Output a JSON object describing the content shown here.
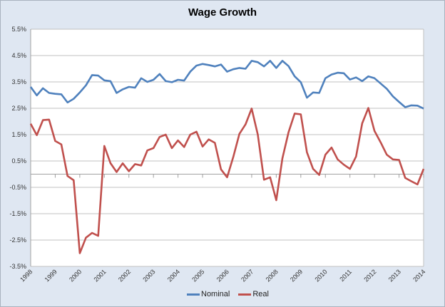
{
  "chart_data": {
    "type": "line",
    "title": "Wage Growth",
    "xlabel": "",
    "ylabel": "",
    "ylim": [
      -3.5,
      5.5
    ],
    "y_ticks": [
      "5.5%",
      "4.5%",
      "3.5%",
      "2.5%",
      "1.5%",
      "0.5%",
      "-0.5%",
      "-1.5%",
      "-2.5%",
      "-3.5%"
    ],
    "x_ticks": [
      "1998",
      "1999",
      "2000",
      "2001",
      "2002",
      "2003",
      "2004",
      "2005",
      "2006",
      "2007",
      "2008",
      "2009",
      "2010",
      "2011",
      "2012",
      "2013",
      "2014"
    ],
    "xlim": [
      1998,
      2014
    ],
    "x_step": "quarterly",
    "grid": "horizontal",
    "legend": "bottom",
    "series": [
      {
        "name": "Nominal",
        "color": "#4f81bd",
        "values": [
          3.31,
          2.99,
          3.26,
          3.08,
          3.05,
          3.03,
          2.72,
          2.86,
          3.1,
          3.37,
          3.76,
          3.74,
          3.56,
          3.53,
          3.08,
          3.22,
          3.31,
          3.28,
          3.64,
          3.5,
          3.58,
          3.8,
          3.53,
          3.49,
          3.58,
          3.55,
          3.89,
          4.12,
          4.18,
          4.14,
          4.09,
          4.16,
          3.89,
          3.98,
          4.03,
          4.0,
          4.3,
          4.25,
          4.09,
          4.3,
          4.03,
          4.3,
          4.1,
          3.71,
          3.49,
          2.9,
          3.1,
          3.08,
          3.64,
          3.78,
          3.85,
          3.83,
          3.59,
          3.67,
          3.53,
          3.71,
          3.64,
          3.44,
          3.24,
          2.95,
          2.74,
          2.54,
          2.61,
          2.6,
          2.49
        ]
      },
      {
        "name": "Real",
        "color": "#c0504d",
        "values": [
          1.91,
          1.48,
          2.05,
          2.07,
          1.26,
          1.13,
          -0.07,
          -0.23,
          -3.0,
          -2.41,
          -2.23,
          -2.34,
          1.07,
          0.42,
          0.08,
          0.41,
          0.11,
          0.38,
          0.33,
          0.9,
          0.99,
          1.41,
          1.5,
          0.99,
          1.28,
          1.03,
          1.5,
          1.61,
          1.05,
          1.32,
          1.19,
          0.18,
          -0.12,
          0.65,
          1.53,
          1.89,
          2.49,
          1.5,
          -0.21,
          -0.12,
          -0.99,
          0.6,
          1.59,
          2.3,
          2.27,
          0.83,
          0.2,
          -0.03,
          0.74,
          1.01,
          0.56,
          0.36,
          0.2,
          0.67,
          1.93,
          2.51,
          1.64,
          1.21,
          0.74,
          0.56,
          0.54,
          -0.14,
          -0.27,
          -0.39,
          0.2
        ]
      }
    ]
  }
}
